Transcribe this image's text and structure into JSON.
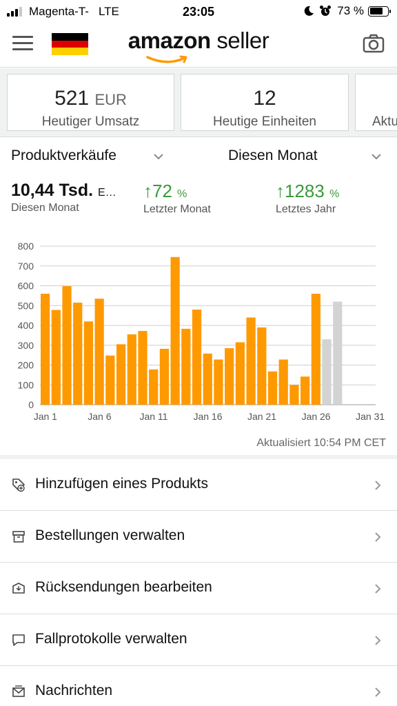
{
  "status_bar": {
    "carrier": "Magenta-T-",
    "network": "LTE",
    "time": "23:05",
    "battery": "73 %",
    "battery_level": 0.73
  },
  "header": {
    "logo_brand": "amazon",
    "logo_suffix": "seller",
    "flag_colors": [
      "#000000",
      "#dd0000",
      "#ffce00"
    ]
  },
  "cards": [
    {
      "value": "521",
      "unit": "EUR",
      "label": "Heutiger Umsatz"
    },
    {
      "value": "12",
      "unit": "",
      "label": "Heutige Einheiten"
    },
    {
      "value": "",
      "unit": "",
      "label": "Aktu"
    }
  ],
  "sales": {
    "metric_dropdown": "Produktverkäufe",
    "period_dropdown": "Diesen Monat",
    "total": "10,44 Tsd.",
    "total_unit": "E…",
    "total_caption": "Diesen Monat",
    "last_month_change": "72",
    "last_month_caption": "Letzter Monat",
    "last_year_change": "1283",
    "last_year_caption": "Letztes Jahr",
    "percent_sign": "%"
  },
  "chart_data": {
    "type": "bar",
    "categories": [
      1,
      2,
      3,
      4,
      5,
      6,
      7,
      8,
      9,
      10,
      11,
      12,
      13,
      14,
      15,
      16,
      17,
      18,
      19,
      20,
      21,
      22,
      23,
      24,
      25,
      26,
      27,
      28
    ],
    "values": [
      560,
      478,
      598,
      515,
      420,
      535,
      248,
      305,
      355,
      372,
      178,
      282,
      745,
      383,
      480,
      258,
      228,
      285,
      315,
      440,
      390,
      168,
      228,
      100,
      142,
      560,
      330,
      520
    ],
    "projected_from_index": 26,
    "colors": {
      "actual": "#ff9900",
      "projected": "#d3d3d3"
    },
    "x_tick_labels": [
      "Jan 1",
      "Jan 6",
      "Jan 11",
      "Jan 16",
      "Jan 21",
      "Jan 26",
      "Jan 31"
    ],
    "x_tick_days": [
      1,
      6,
      11,
      16,
      21,
      26,
      31
    ],
    "y_ticks": [
      0,
      100,
      200,
      300,
      400,
      500,
      600,
      700,
      800
    ],
    "ylim": [
      0,
      800
    ],
    "xlim": [
      1,
      31
    ],
    "grid": true
  },
  "updated_text": "Aktualisiert 10:54 PM CET",
  "menu": [
    {
      "label": "Hinzufügen eines Produkts",
      "icon": "tag-add-icon"
    },
    {
      "label": "Bestellungen verwalten",
      "icon": "box-icon"
    },
    {
      "label": "Rücksendungen bearbeiten",
      "icon": "return-box-icon"
    },
    {
      "label": "Fallprotokolle verwalten",
      "icon": "chat-bubble-icon"
    },
    {
      "label": "Nachrichten",
      "icon": "envelope-icon"
    }
  ]
}
